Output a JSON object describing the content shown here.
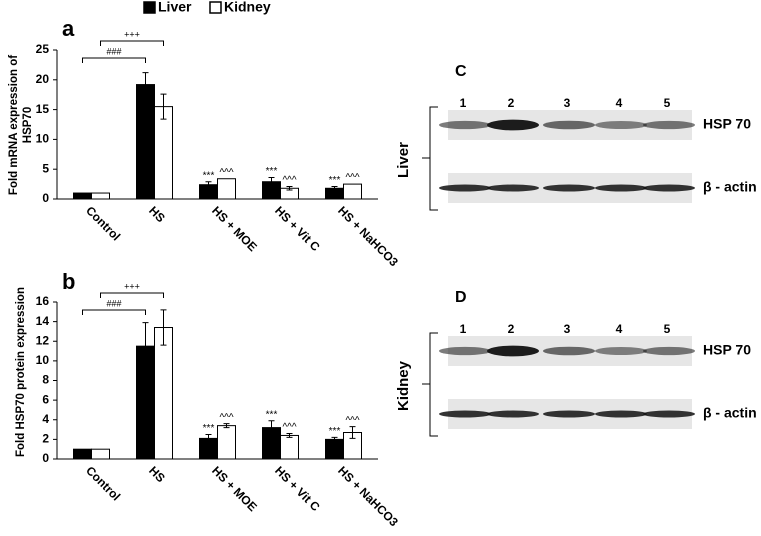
{
  "chart_data": [
    {
      "type": "bar",
      "panel": "a",
      "ylabel": "Fold mRNA expression of HSP70",
      "categories": [
        "Control",
        "HS",
        "HS + MOE",
        "HS + Vit C",
        "HS + NaHCO3"
      ],
      "series": [
        {
          "name": "Liver",
          "color": "#000000",
          "values": [
            1,
            19.2,
            2.4,
            2.9,
            1.8
          ],
          "errors": [
            null,
            2.0,
            0.5,
            0.7,
            0.3
          ],
          "sig": [
            null,
            null,
            "***",
            "***",
            "***"
          ]
        },
        {
          "name": "Kidney",
          "color": "#ffffff",
          "values": [
            1,
            15.5,
            3.4,
            1.8,
            2.5
          ],
          "errors": [
            null,
            2.1,
            null,
            0.3,
            null
          ],
          "sig": [
            null,
            null,
            "^^^",
            "^^^",
            "^^^"
          ]
        }
      ],
      "brackets": [
        {
          "label": "###",
          "series": 0,
          "from": 0,
          "to": 1
        },
        {
          "label": "+++",
          "series": 1,
          "from": 0,
          "to": 1
        }
      ],
      "ylim": [
        0,
        25
      ],
      "yticks": [
        0,
        5,
        10,
        15,
        20,
        25
      ]
    },
    {
      "type": "bar",
      "panel": "b",
      "ylabel": "Fold HSP70 protein expression",
      "categories": [
        "Control",
        "HS",
        "HS + MOE",
        "HS + Vit C",
        "HS + NaHCO3"
      ],
      "series": [
        {
          "color": "#000000",
          "values": [
            1,
            11.5,
            2.1,
            3.2,
            2.0
          ],
          "errors": [
            null,
            2.4,
            0.4,
            0.7,
            0.2
          ],
          "sig": [
            null,
            null,
            "***",
            "***",
            "***"
          ]
        },
        {
          "color": "#ffffff",
          "values": [
            1,
            13.4,
            3.4,
            2.4,
            2.7
          ],
          "errors": [
            null,
            1.8,
            0.2,
            0.2,
            0.6
          ],
          "sig": [
            null,
            null,
            "^^^",
            "^^^",
            "^^^"
          ]
        }
      ],
      "brackets": [
        {
          "label": "###",
          "series": 0,
          "from": 0,
          "to": 1
        },
        {
          "label": "+++",
          "series": 1,
          "from": 0,
          "to": 1
        }
      ],
      "ylim": [
        0,
        16
      ],
      "yticks": [
        0,
        2,
        4,
        6,
        8,
        10,
        12,
        14,
        16
      ]
    }
  ],
  "blots": [
    {
      "label": "C",
      "tissue": "Liver",
      "lanes": [
        "1",
        "2",
        "3",
        "4",
        "5"
      ],
      "bands": [
        "HSP 70",
        "β - actin"
      ]
    },
    {
      "label": "D",
      "tissue": "Kidney",
      "lanes": [
        "1",
        "2",
        "3",
        "4",
        "5"
      ],
      "bands": [
        "HSP 70",
        "β - actin"
      ]
    }
  ]
}
